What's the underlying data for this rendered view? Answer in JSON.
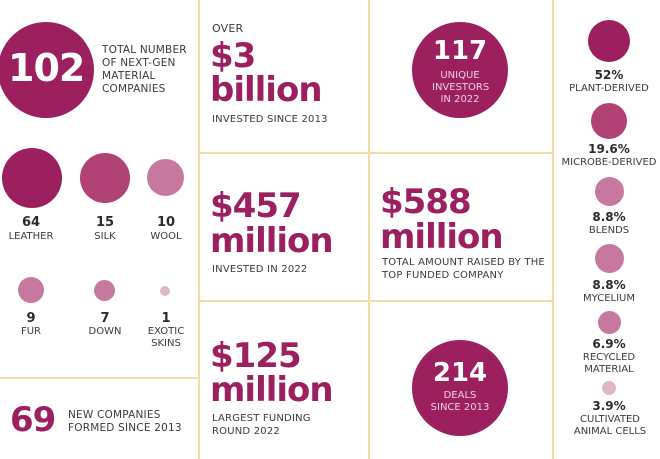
{
  "summary": {
    "companies_count": "102",
    "companies_label": "TOTAL NUMBER OF NEXT-GEN MATERIAL COMPANIES",
    "new_companies_count": "69",
    "new_companies_label": "NEW COMPANIES FORMED SINCE 2013"
  },
  "materials": [
    {
      "count": "64",
      "label": "LEATHER"
    },
    {
      "count": "15",
      "label": "SILK"
    },
    {
      "count": "10",
      "label": "WOOL"
    },
    {
      "count": "9",
      "label": "FUR"
    },
    {
      "count": "7",
      "label": "DOWN"
    },
    {
      "count": "1",
      "label": "EXOTIC SKINS"
    }
  ],
  "investment_total": {
    "prefix": "OVER",
    "amount": "$3",
    "unit": "billion",
    "label": "INVESTED SINCE 2013"
  },
  "investment_2022": {
    "amount": "$457",
    "unit": "million",
    "label": "INVESTED IN 2022"
  },
  "largest_round": {
    "amount": "$125",
    "unit": "million",
    "label": "LARGEST FUNDING ROUND 2022"
  },
  "investors": {
    "count": "117",
    "label": "UNIQUE INVESTORS IN 2022"
  },
  "top_company": {
    "amount": "$588",
    "unit": "million",
    "label": "TOTAL AMOUNT RAISED BY THE TOP FUNDED COMPANY"
  },
  "deals": {
    "count": "214",
    "label": "DEALS SINCE 2013"
  },
  "categories": [
    {
      "pct": "52%",
      "label": "PLANT-DERIVED"
    },
    {
      "pct": "19.6%",
      "label": "MICROBE-DERIVED"
    },
    {
      "pct": "8.8%",
      "label": "BLENDS"
    },
    {
      "pct": "8.8%",
      "label": "MYCELIUM"
    },
    {
      "pct": "6.9%",
      "label": "RECYCLED MATERIAL"
    },
    {
      "pct": "3.9%",
      "label": "CULTIVATED ANIMAL CELLS"
    }
  ],
  "colors": {
    "primary": "#9c1f5f",
    "divider": "#f3dba5"
  }
}
